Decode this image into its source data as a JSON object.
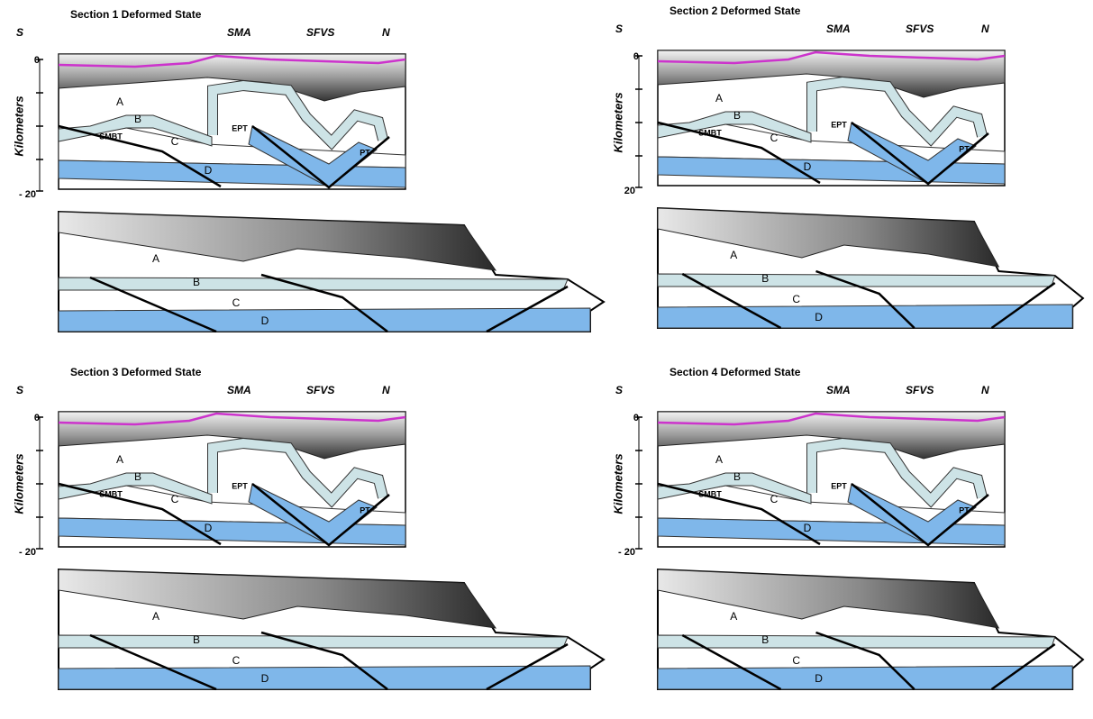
{
  "sections": [
    {
      "title": "Section 1   Deformed State",
      "south": "S",
      "sma": "SMA",
      "sfvs": "SFVS",
      "north": "N",
      "axis_label": "Kilometers",
      "axis_ticks": [
        "0",
        "- 20"
      ],
      "upper_labels": [
        "A",
        "B",
        "SMBT",
        "C",
        "EPT",
        "PT",
        "D"
      ],
      "lower_labels": [
        "A",
        "B",
        "C",
        "D"
      ]
    },
    {
      "title": "Section 2  Deformed State",
      "south": "S",
      "sma": "SMA",
      "sfvs": "SFVS",
      "north": "N",
      "axis_label": "Kilometers",
      "axis_ticks": [
        "0",
        "20"
      ],
      "upper_labels": [
        "A",
        "B",
        "SMBT",
        "C",
        "EPT",
        "PT",
        "D"
      ],
      "lower_labels": [
        "A",
        "B",
        "C",
        "D"
      ]
    },
    {
      "title": "Section 3   Deformed State",
      "south": "S",
      "sma": "SMA",
      "sfvs": "SFVS",
      "north": "N",
      "axis_label": "Kilometers",
      "axis_ticks": [
        "0",
        "- 20"
      ],
      "upper_labels": [
        "A",
        "B",
        "SMBT",
        "C",
        "EPT",
        "PT",
        "D"
      ],
      "lower_labels": [
        "A",
        "B",
        "C",
        "D"
      ]
    },
    {
      "title": "Section 4  Deformed State",
      "south": "S",
      "sma": "SMA",
      "sfvs": "SFVS",
      "north": "N",
      "axis_label": "Kilometers",
      "axis_ticks": [
        "0",
        "- 20"
      ],
      "upper_labels": [
        "A",
        "B",
        "SMBT",
        "C",
        "EPT",
        "PT",
        "D"
      ],
      "lower_labels": [
        "A",
        "B",
        "C",
        "D"
      ]
    }
  ]
}
